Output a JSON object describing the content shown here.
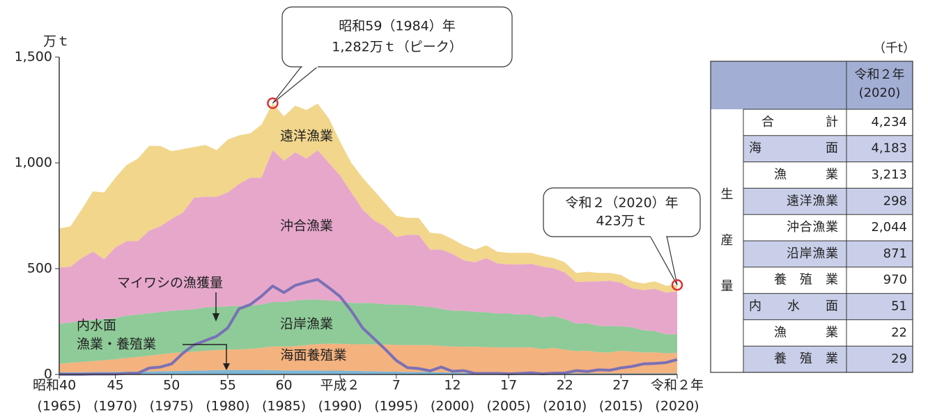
{
  "chart_data": {
    "type": "stacked_area",
    "y_unit": "万ｔ",
    "x": [
      1965,
      1966,
      1967,
      1968,
      1969,
      1970,
      1971,
      1972,
      1973,
      1974,
      1975,
      1976,
      1977,
      1978,
      1979,
      1980,
      1981,
      1982,
      1983,
      1984,
      1985,
      1986,
      1987,
      1988,
      1989,
      1990,
      1991,
      1992,
      1993,
      1994,
      1995,
      1996,
      1997,
      1998,
      1999,
      2000,
      2001,
      2002,
      2003,
      2004,
      2005,
      2006,
      2007,
      2008,
      2009,
      2010,
      2011,
      2012,
      2013,
      2014,
      2015,
      2016,
      2017,
      2018,
      2019,
      2020
    ],
    "xlim": [
      1965,
      2020
    ],
    "xticks": [
      {
        "value": 1965,
        "label": "昭和40",
        "year": "(1965)"
      },
      {
        "value": 1970,
        "label": "45",
        "year": "(1970)"
      },
      {
        "value": 1975,
        "label": "50",
        "year": "(1975)"
      },
      {
        "value": 1980,
        "label": "55",
        "year": "(1980)"
      },
      {
        "value": 1985,
        "label": "60",
        "year": "(1985)"
      },
      {
        "value": 1990,
        "label": "平成２",
        "year": "(1990)"
      },
      {
        "value": 1995,
        "label": "7",
        "year": "(1995)"
      },
      {
        "value": 2000,
        "label": "12",
        "year": "(2000)"
      },
      {
        "value": 2005,
        "label": "17",
        "year": "(2005)"
      },
      {
        "value": 2010,
        "label": "22",
        "year": "(2010)"
      },
      {
        "value": 2015,
        "label": "27",
        "year": "(2015)"
      },
      {
        "value": 2020,
        "label": "令和２年",
        "year": "(2020)"
      }
    ],
    "ylim": [
      0,
      1500
    ],
    "yticks": [
      0,
      500,
      {
        "value": 1000,
        "label": "1,000"
      },
      {
        "value": 1500,
        "label": "1,500"
      }
    ],
    "series": [
      {
        "name": [
          "内水面",
          "漁業・養殖業"
        ],
        "color": "#7db6d6",
        "values": [
          10,
          10,
          11,
          11,
          12,
          12,
          13,
          13,
          14,
          15,
          16,
          17,
          18,
          19,
          20,
          21,
          21,
          21,
          21,
          20,
          19,
          19,
          19,
          19,
          18,
          18,
          17,
          16,
          15,
          14,
          13,
          12,
          12,
          11,
          10,
          9,
          8,
          8,
          8,
          7,
          7,
          7,
          7,
          6,
          6,
          6,
          5,
          5,
          5,
          5,
          5,
          5,
          5,
          5,
          5,
          5
        ]
      },
      {
        "name": "海面養殖業",
        "color": "#f4b27e",
        "values": [
          40,
          45,
          48,
          52,
          55,
          60,
          65,
          70,
          75,
          80,
          85,
          88,
          90,
          93,
          95,
          96,
          98,
          100,
          105,
          112,
          113,
          115,
          120,
          125,
          127,
          127,
          126,
          127,
          127,
          127,
          127,
          127,
          127,
          128,
          125,
          123,
          123,
          123,
          121,
          121,
          121,
          121,
          121,
          114,
          120,
          111,
          105,
          107,
          100,
          99,
          107,
          103,
          99,
          100,
          95,
          97
        ]
      },
      {
        "name": "沿岸漁業",
        "color": "#8ecb98",
        "values": [
          190,
          190,
          195,
          195,
          195,
          195,
          200,
          200,
          200,
          200,
          200,
          200,
          200,
          205,
          205,
          205,
          205,
          205,
          205,
          210,
          210,
          215,
          215,
          210,
          205,
          200,
          195,
          195,
          195,
          190,
          190,
          190,
          185,
          180,
          175,
          170,
          170,
          165,
          165,
          160,
          160,
          155,
          155,
          150,
          150,
          145,
          130,
          130,
          125,
          125,
          115,
          115,
          105,
          100,
          90,
          87
        ]
      },
      {
        "name": "沖合漁業",
        "color": "#e7a7cb",
        "values": [
          265,
          265,
          296,
          322,
          283,
          333,
          352,
          347,
          391,
          405,
          434,
          460,
          527,
          523,
          520,
          538,
          576,
          604,
          599,
          718,
          668,
          701,
          666,
          706,
          650,
          595,
          522,
          442,
          393,
          369,
          320,
          331,
          336,
          271,
          280,
          268,
          239,
          234,
          256,
          237,
          232,
          237,
          240,
          240,
          226,
          220,
          197,
          197,
          210,
          214,
          207,
          184,
          190,
          200,
          197,
          204
        ]
      },
      {
        "name": "遠洋漁業",
        "color": "#f1d68c",
        "values": [
          185,
          190,
          230,
          285,
          315,
          330,
          360,
          390,
          400,
          380,
          320,
          300,
          240,
          245,
          220,
          250,
          230,
          210,
          250,
          222,
          210,
          220,
          230,
          220,
          210,
          160,
          140,
          150,
          140,
          110,
          100,
          80,
          80,
          80,
          75,
          70,
          70,
          60,
          60,
          55,
          55,
          55,
          52,
          50,
          48,
          48,
          43,
          46,
          40,
          37,
          36,
          33,
          31,
          35,
          33,
          30
        ]
      }
    ],
    "line": {
      "name": "マイワシの漁獲量",
      "color": "#7a70b6",
      "values": [
        1,
        1,
        1,
        2,
        2,
        2,
        5,
        6,
        30,
        35,
        50,
        100,
        140,
        160,
        180,
        220,
        310,
        330,
        370,
        418,
        387,
        421,
        436,
        449,
        410,
        368,
        300,
        220,
        170,
        120,
        66,
        32,
        28,
        17,
        35,
        15,
        18,
        5,
        5,
        5,
        3,
        5,
        8,
        3,
        6,
        7,
        18,
        14,
        22,
        20,
        31,
        38,
        50,
        52,
        56,
        70
      ]
    },
    "annotations": [
      {
        "text": [
          "昭和59（1984）年",
          "1,282万ｔ（ピーク）"
        ],
        "x": 1984,
        "y": 1282
      },
      {
        "text": [
          "令和２（2020）年",
          "423万ｔ"
        ],
        "x": 2020,
        "y": 423
      }
    ]
  },
  "table": {
    "unit": "（千t）",
    "header": [
      "令和２年",
      "(2020)"
    ],
    "side_label": [
      "生",
      "産",
      "量"
    ],
    "rows": [
      [
        "合　　　計",
        "4,234"
      ],
      [
        "海　　　面",
        "4,183"
      ],
      [
        "漁　　　業",
        "3,213"
      ],
      [
        "遠洋漁業",
        "298"
      ],
      [
        "沖合漁業",
        "2,044"
      ],
      [
        "沿岸漁業",
        "871"
      ],
      [
        "養　殖　業",
        "970"
      ],
      [
        "内　水　面",
        "51"
      ],
      [
        "漁　　　業",
        "22"
      ],
      [
        "養　殖　業",
        "29"
      ]
    ]
  }
}
